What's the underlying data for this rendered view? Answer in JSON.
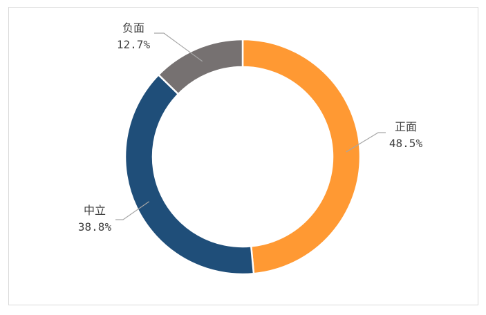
{
  "chart_data": {
    "type": "pie",
    "donut": true,
    "title": "",
    "legend": "none",
    "slices": [
      {
        "label": "正面",
        "value": 48.5,
        "display": "48.5%",
        "color": "#FF9933"
      },
      {
        "label": "中立",
        "value": 38.8,
        "display": "38.8%",
        "color": "#1F4E79"
      },
      {
        "label": "负面",
        "value": 12.7,
        "display": "12.7%",
        "color": "#767171"
      }
    ]
  }
}
